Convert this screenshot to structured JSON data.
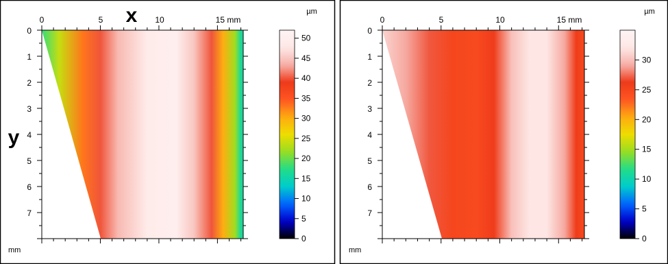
{
  "chart_data": [
    {
      "type": "heatmap",
      "title": "",
      "xlabel": "x",
      "ylabel": "y",
      "x_unit": "mm",
      "y_unit": "mm",
      "xlim": [
        0,
        17.2
      ],
      "ylim": [
        0,
        8
      ],
      "x_ticks": [
        "0",
        "5",
        "10",
        "15 mm"
      ],
      "y_ticks": [
        "0",
        "1",
        "2",
        "3",
        "4",
        "5",
        "6",
        "7"
      ],
      "colorbar": {
        "unit": "µm",
        "range": [
          0,
          52
        ],
        "ticks": [
          "0",
          "5",
          "10",
          "15",
          "20",
          "25",
          "30",
          "35",
          "40",
          "45",
          "50"
        ]
      },
      "shape": "trapezoid: left edge slants from (0 mm, 0 mm) to (5 mm, 8 mm); right edge at about 17 mm",
      "values_profile_um": {
        "x_mm": [
          0,
          1.5,
          3.5,
          5,
          6.5,
          9,
          11.5,
          13,
          14.5,
          15.5,
          16.5,
          17
        ],
        "thickness": [
          18,
          24,
          33,
          40,
          44,
          49,
          50,
          45,
          40,
          30,
          22,
          16
        ]
      }
    },
    {
      "type": "heatmap",
      "title": "",
      "xlabel": "",
      "ylabel": "",
      "x_unit": "mm",
      "y_unit": "mm",
      "xlim": [
        0,
        17.2
      ],
      "ylim": [
        0,
        8
      ],
      "x_ticks": [
        "0",
        "5",
        "10",
        "15 mm"
      ],
      "y_ticks": [
        "0",
        "1",
        "2",
        "3",
        "4",
        "5",
        "6",
        "7"
      ],
      "colorbar": {
        "unit": "µm",
        "range": [
          0,
          35
        ],
        "ticks": [
          "0",
          "5",
          "10",
          "15",
          "20",
          "25",
          "30"
        ]
      },
      "shape": "trapezoid: left edge slants from (0 mm, 0 mm) to (5 mm, 8 mm); right edge at about 17 mm",
      "values_profile_um": {
        "x_mm": [
          0,
          2,
          4,
          6,
          8,
          9.5,
          11,
          12.5,
          14,
          15.5,
          16.5,
          17
        ],
        "thickness": [
          31,
          29,
          27,
          25,
          24.5,
          26,
          30,
          32,
          32,
          29,
          26,
          25
        ]
      }
    }
  ],
  "colormap": [
    "#000000",
    "#0000cc",
    "#0066ff",
    "#00cccc",
    "#22dd88",
    "#99dd22",
    "#eedd00",
    "#ffaa11",
    "#ff5522",
    "#ee3a1a",
    "#f7b0a8",
    "#fde8e6",
    "#fff4f4"
  ]
}
